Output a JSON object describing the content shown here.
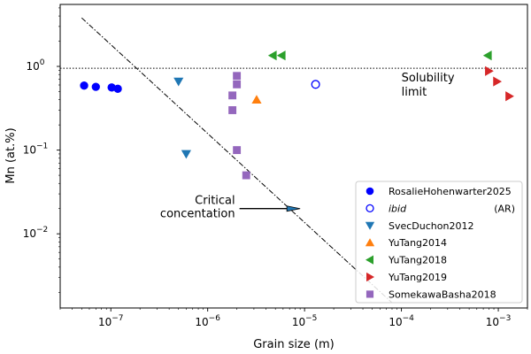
{
  "chart_data": {
    "type": "scatter",
    "xscale": "log",
    "yscale": "log",
    "xlim": [
      3e-08,
      0.002
    ],
    "ylim": [
      0.0013,
      5.5
    ],
    "xlabel": "Grain size (m)",
    "ylabel": "Mn (at.%)",
    "x_ticks": [
      {
        "value": 1e-07,
        "label": "10",
        "exp": "−7"
      },
      {
        "value": 1e-06,
        "label": "10",
        "exp": "−6"
      },
      {
        "value": 1e-05,
        "label": "10",
        "exp": "−5"
      },
      {
        "value": 0.0001,
        "label": "10",
        "exp": "−4"
      },
      {
        "value": 0.001,
        "label": "10",
        "exp": "−3"
      }
    ],
    "y_ticks": [
      {
        "value": 0.01,
        "label": "10",
        "exp": "−2"
      },
      {
        "value": 0.1,
        "label": "10",
        "exp": "−1"
      },
      {
        "value": 1,
        "label": "10",
        "exp": "0"
      }
    ],
    "solubility_limit": 0.95,
    "critical_line": {
      "x": [
        5e-08,
        8e-05
      ],
      "y": [
        3.8,
        0.0015
      ]
    },
    "series": [
      {
        "name": "RosalieHohenwarter2025",
        "marker": "circle",
        "color": "#0000ff",
        "filled": true,
        "points": [
          [
            5.3e-08,
            0.59
          ],
          [
            7e-08,
            0.57
          ],
          [
            1.02e-07,
            0.56
          ],
          [
            1.18e-07,
            0.54
          ]
        ]
      },
      {
        "name": "ibid (AR)",
        "marker": "circle",
        "color": "#0000ff",
        "filled": false,
        "points": [
          [
            1.3e-05,
            0.61
          ]
        ]
      },
      {
        "name": "SvecDuchon2012",
        "marker": "triangle-down",
        "color": "#1f77b4",
        "filled": true,
        "points": [
          [
            5e-07,
            0.66
          ],
          [
            6e-07,
            0.09
          ]
        ]
      },
      {
        "name": "YuTang2014",
        "marker": "triangle-up",
        "color": "#ff7f0e",
        "filled": true,
        "points": [
          [
            3.2e-06,
            0.4
          ]
        ]
      },
      {
        "name": "YuTang2018",
        "marker": "triangle-left",
        "color": "#2ca02c",
        "filled": true,
        "points": [
          [
            4.7e-06,
            1.35
          ],
          [
            5.8e-06,
            1.35
          ],
          [
            0.00078,
            1.35
          ]
        ]
      },
      {
        "name": "YuTang2019",
        "marker": "triangle-right",
        "color": "#d62728",
        "filled": true,
        "points": [
          [
            0.0008,
            0.88
          ],
          [
            0.00097,
            0.66
          ],
          [
            0.0013,
            0.44
          ]
        ]
      },
      {
        "name": "SomekawaBasha2018",
        "marker": "square",
        "color": "#9467bd",
        "filled": true,
        "points": [
          [
            2e-06,
            0.77
          ],
          [
            2e-06,
            0.61
          ],
          [
            1.8e-06,
            0.45
          ],
          [
            1.8e-06,
            0.3
          ],
          [
            2e-06,
            0.1
          ],
          [
            2.5e-06,
            0.05
          ]
        ]
      }
    ],
    "legend": {
      "placement": "bottom-right",
      "entries": [
        {
          "label": "RosalieHohenwarter2025",
          "suffix": ""
        },
        {
          "label": "ibid",
          "suffix": "(AR)"
        },
        {
          "label": "SvecDuchon2012",
          "suffix": ""
        },
        {
          "label": "YuTang2014",
          "suffix": ""
        },
        {
          "label": "YuTang2018",
          "suffix": ""
        },
        {
          "label": "YuTang2019",
          "suffix": ""
        },
        {
          "label": "SomekawaBasha2018",
          "suffix": ""
        }
      ]
    },
    "annotations": {
      "solubility": [
        "Solubility",
        "limit"
      ],
      "critical": [
        "Critical",
        "concentation"
      ],
      "critical_arrow": {
        "from": [
          2e-06,
          0.02
        ],
        "to": [
          9e-06,
          0.02
        ]
      }
    }
  }
}
